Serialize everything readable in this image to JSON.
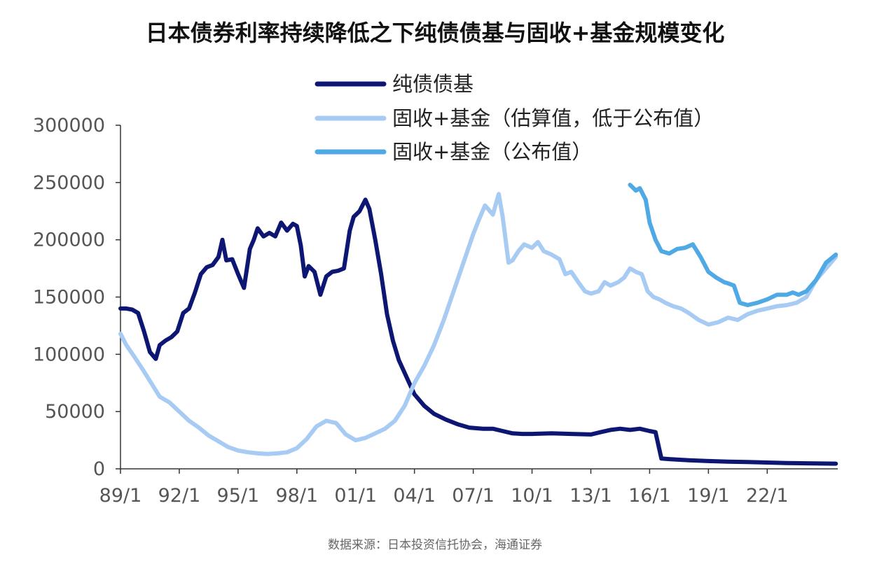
{
  "title": "日本债券利率持续降低之下纯债债基与固收+基金规模变化",
  "source": "数据来源：日本投资信托协会，海通证券",
  "chart_data": {
    "type": "line",
    "title": "日本债券利率持续降低之下纯债债基与固收+基金规模变化",
    "xlabel": "",
    "ylabel": "",
    "ylim": [
      0,
      300000
    ],
    "xlim": [
      1989.0,
      2025.6
    ],
    "yticks": [
      0,
      50000,
      100000,
      150000,
      200000,
      250000,
      300000
    ],
    "xtick_labels": [
      "89/1",
      "92/1",
      "95/1",
      "98/1",
      "01/1",
      "04/1",
      "07/1",
      "10/1",
      "13/1",
      "16/1",
      "19/1",
      "22/1"
    ],
    "xtick_values": [
      1989,
      1992,
      1995,
      1998,
      2001,
      2004,
      2007,
      2010,
      2013,
      2016,
      2019,
      2022
    ],
    "grid": false,
    "legend_position": "top-center",
    "series": [
      {
        "name": "纯债债基",
        "color": "#0d1773",
        "x": [
          1989.0,
          1989.3,
          1989.6,
          1989.9,
          1990.2,
          1990.5,
          1990.8,
          1991.0,
          1991.3,
          1991.6,
          1991.9,
          1992.2,
          1992.5,
          1992.8,
          1993.1,
          1993.4,
          1993.7,
          1994.0,
          1994.2,
          1994.4,
          1994.7,
          1995.0,
          1995.3,
          1995.6,
          1995.8,
          1996.0,
          1996.3,
          1996.6,
          1996.9,
          1997.2,
          1997.5,
          1997.8,
          1998.0,
          1998.2,
          1998.4,
          1998.6,
          1998.9,
          1999.2,
          1999.5,
          1999.8,
          2000.1,
          2000.4,
          2000.7,
          2000.9,
          2001.2,
          2001.5,
          2001.7,
          2002.0,
          2002.3,
          2002.6,
          2002.9,
          2003.2,
          2003.6,
          2004.0,
          2004.5,
          2005.0,
          2005.6,
          2006.2,
          2006.8,
          2007.5,
          2008.0,
          2008.5,
          2009.0,
          2009.5,
          2010.0,
          2011.0,
          2012.0,
          2013.0,
          2013.5,
          2014.0,
          2014.5,
          2015.0,
          2015.5,
          2016.0,
          2016.3,
          2016.6,
          2017.0,
          2018.0,
          2019.0,
          2020.0,
          2021.0,
          2022.0,
          2023.0,
          2024.0,
          2025.5
        ],
        "values": [
          140000,
          140000,
          139000,
          136000,
          120000,
          102000,
          96000,
          108000,
          112000,
          115000,
          120000,
          136000,
          140000,
          154000,
          170000,
          176000,
          178000,
          185000,
          200000,
          182000,
          183000,
          170000,
          158000,
          192000,
          200000,
          210000,
          203000,
          206000,
          203000,
          215000,
          208000,
          214000,
          212000,
          195000,
          168000,
          177000,
          172000,
          152000,
          168000,
          172000,
          173000,
          175000,
          208000,
          220000,
          225000,
          235000,
          227000,
          200000,
          170000,
          135000,
          112000,
          95000,
          80000,
          65000,
          55000,
          48000,
          43000,
          39000,
          36000,
          35000,
          35000,
          33000,
          31000,
          30500,
          30500,
          31000,
          30500,
          30000,
          32000,
          34000,
          35000,
          34000,
          35000,
          33000,
          32000,
          9000,
          8500,
          7500,
          6800,
          6300,
          5900,
          5500,
          5100,
          4800,
          4500
        ]
      },
      {
        "name": "固收+基金（估算值，低于公布值）",
        "color": "#a7cbf2",
        "x": [
          1989.0,
          1989.3,
          1989.7,
          1990.2,
          1990.6,
          1991.0,
          1991.5,
          1992.0,
          1992.5,
          1993.0,
          1993.5,
          1994.0,
          1994.5,
          1995.0,
          1995.5,
          1996.0,
          1996.5,
          1997.0,
          1997.5,
          1998.0,
          1998.5,
          1999.0,
          1999.5,
          2000.0,
          2000.5,
          2001.0,
          2001.5,
          2002.0,
          2002.5,
          2003.0,
          2003.5,
          2004.0,
          2004.5,
          2005.0,
          2005.5,
          2006.0,
          2006.5,
          2007.0,
          2007.3,
          2007.6,
          2008.0,
          2008.3,
          2008.5,
          2008.8,
          2009.0,
          2009.3,
          2009.6,
          2010.0,
          2010.3,
          2010.6,
          2011.0,
          2011.4,
          2011.7,
          2012.0,
          2012.4,
          2012.7,
          2013.0,
          2013.4,
          2013.7,
          2014.0,
          2014.4,
          2014.7,
          2015.0,
          2015.3,
          2015.6,
          2015.9,
          2016.2,
          2016.5,
          2016.8,
          2017.2,
          2017.6,
          2018.0,
          2018.5,
          2019.0,
          2019.5,
          2020.0,
          2020.5,
          2021.0,
          2021.5,
          2022.0,
          2022.5,
          2023.0,
          2023.5,
          2024.0,
          2024.5,
          2025.0,
          2025.5
        ],
        "values": [
          118000,
          108000,
          98000,
          85000,
          74000,
          63000,
          58000,
          50000,
          42000,
          36000,
          29000,
          24000,
          19000,
          16000,
          14500,
          13500,
          13000,
          13500,
          14500,
          18000,
          26000,
          37000,
          42000,
          40000,
          30000,
          25000,
          27000,
          31000,
          35000,
          42000,
          55000,
          75000,
          90000,
          108000,
          130000,
          155000,
          180000,
          205000,
          218000,
          230000,
          222000,
          240000,
          220000,
          180000,
          182000,
          190000,
          196000,
          193000,
          198000,
          190000,
          187000,
          183000,
          170000,
          172000,
          162000,
          155000,
          153000,
          155000,
          163000,
          160000,
          163000,
          167000,
          175000,
          172000,
          170000,
          155000,
          150000,
          148000,
          145000,
          142000,
          140000,
          136000,
          130000,
          126000,
          128000,
          132000,
          130000,
          135000,
          138000,
          140000,
          142000,
          143000,
          145000,
          150000,
          165000,
          175000,
          185000
        ]
      },
      {
        "name": "固收+基金（公布值）",
        "color": "#4ea9e4",
        "x": [
          2015.0,
          2015.3,
          2015.5,
          2015.8,
          2016.0,
          2016.3,
          2016.6,
          2017.0,
          2017.4,
          2017.8,
          2018.2,
          2018.6,
          2019.0,
          2019.4,
          2019.8,
          2020.0,
          2020.3,
          2020.6,
          2021.0,
          2021.5,
          2022.0,
          2022.5,
          2023.0,
          2023.3,
          2023.6,
          2024.0,
          2024.5,
          2025.0,
          2025.5
        ],
        "values": [
          248000,
          243000,
          245000,
          235000,
          215000,
          200000,
          190000,
          188000,
          192000,
          193000,
          196000,
          185000,
          172000,
          167000,
          163000,
          162000,
          160000,
          145000,
          143000,
          145000,
          148000,
          152000,
          152000,
          154000,
          152000,
          155000,
          165000,
          180000,
          187000
        ]
      }
    ]
  }
}
